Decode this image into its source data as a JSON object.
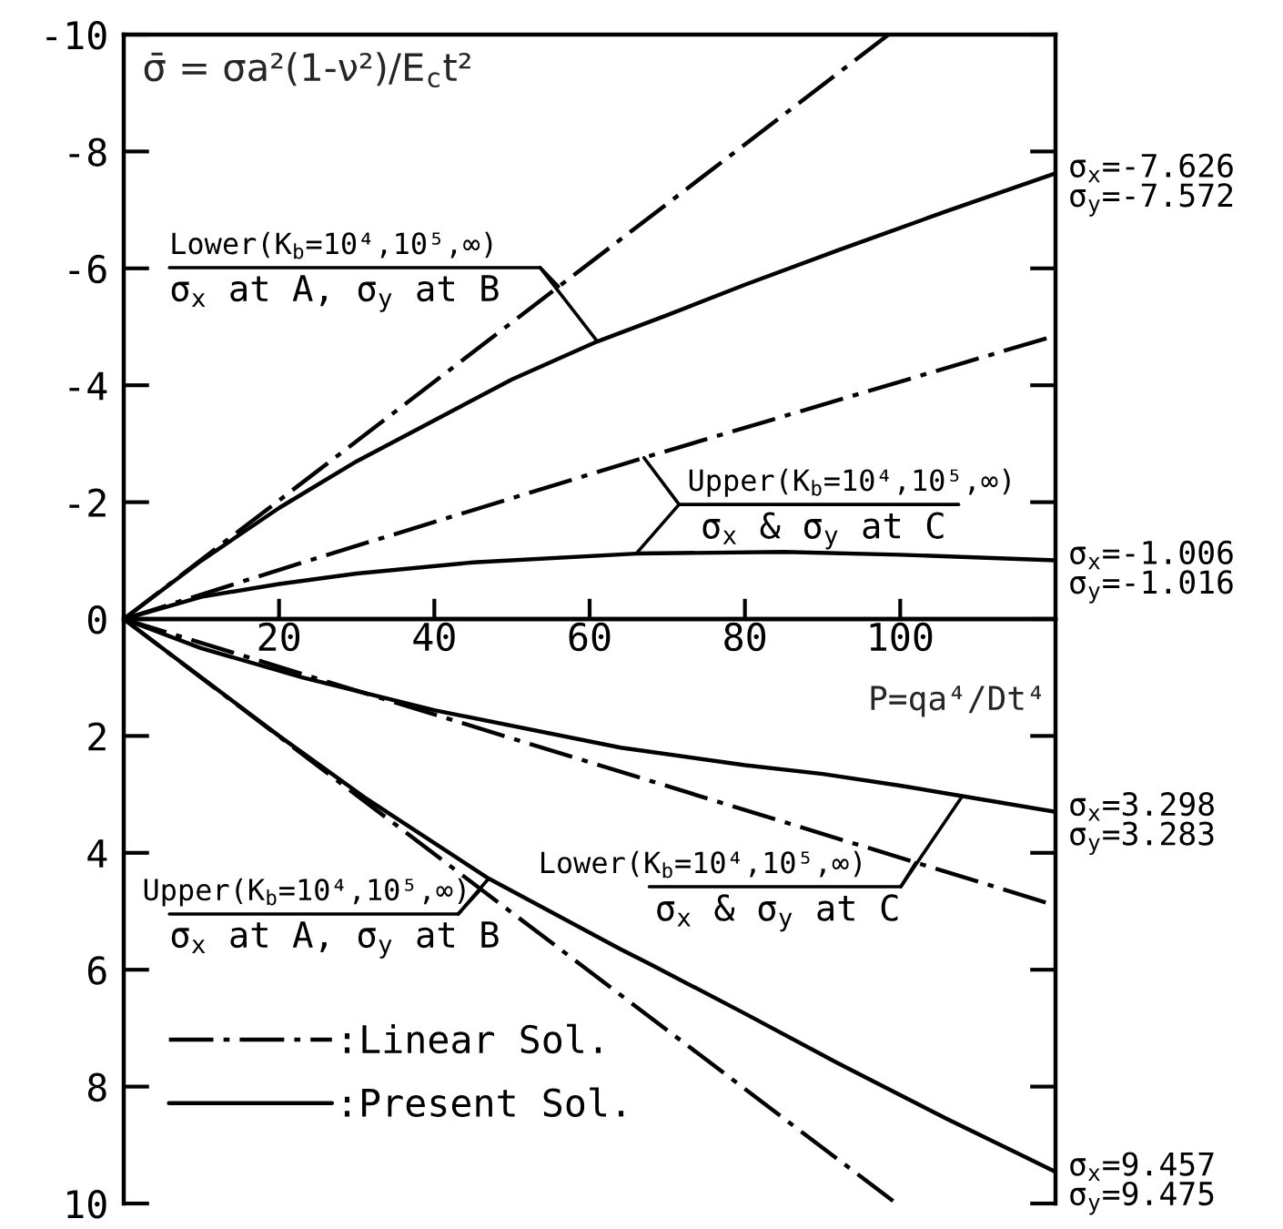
{
  "chart_data": {
    "type": "line",
    "ylabel": "σ̄ = σa²(1-ν²)/E$_{c}$t²",
    "xlabel": "P=qa⁴/Dt⁴",
    "xlim": [
      0,
      120
    ],
    "ylim": [
      10,
      -10
    ],
    "xticks": [
      20,
      40,
      60,
      80,
      100
    ],
    "yticks": [
      -10,
      -8,
      -6,
      -4,
      -2,
      0,
      2,
      4,
      6,
      8,
      10
    ],
    "legend": "bottom left",
    "series": [
      {
        "name": ":Linear Sol.",
        "color": "#000000",
        "line_style": "dashdot",
        "x": [
          0,
          98.5
        ],
        "values": [
          0,
          -10
        ]
      },
      {
        "name": ":Present Sol.",
        "color": "#000000",
        "line_style": "solid",
        "x": [
          0,
          10,
          20,
          30,
          40,
          50,
          61,
          70,
          80,
          92,
          106,
          120
        ],
        "values": [
          0,
          -1.0,
          -1.9,
          -2.7,
          -3.4,
          -4.1,
          -4.75,
          -5.2,
          -5.72,
          -6.31,
          -6.98,
          -7.626
        ]
      },
      {
        "color": "#000000",
        "line_style": "dashdot",
        "x": [
          0,
          25,
          68,
          120
        ],
        "values": [
          0,
          -1.05,
          -2.8,
          -4.85
        ]
      },
      {
        "color": "#000000",
        "line_style": "solid",
        "x": [
          0,
          10,
          20,
          30,
          45,
          66,
          85,
          100,
          120
        ],
        "values": [
          0,
          -0.38,
          -0.6,
          -0.78,
          -0.97,
          -1.12,
          -1.15,
          -1.1,
          -1.006
        ]
      },
      {
        "color": "#000000",
        "line_style": "solid",
        "x": [
          0,
          10,
          23,
          40,
          64,
          80,
          90,
          100,
          108,
          120
        ],
        "values": [
          0,
          0.5,
          1.0,
          1.56,
          2.2,
          2.5,
          2.65,
          2.85,
          3.03,
          3.298
        ]
      },
      {
        "color": "#000000",
        "line_style": "dashdot",
        "x": [
          0,
          120
        ],
        "values": [
          0,
          4.9
        ]
      },
      {
        "color": "#000000",
        "line_style": "solid",
        "x": [
          0,
          10,
          20,
          31,
          47,
          64,
          68,
          80,
          92,
          106,
          120
        ],
        "values": [
          0,
          1.0,
          2.0,
          3.05,
          4.44,
          5.65,
          5.92,
          6.75,
          7.6,
          8.55,
          9.457
        ]
      },
      {
        "color": "#000000",
        "line_style": "dashdot",
        "x": [
          0,
          99.5
        ],
        "values": [
          0,
          10
        ]
      }
    ],
    "annotations": [
      {
        "text": "σ$_{x}$=-7.626\nσ$_{y}$=-7.572",
        "x": 120,
        "y": -7.626
      },
      {
        "text": "σ$_{x}$=-1.006\nσ$_{y}$=-1.016",
        "x": 120,
        "y": -1.006
      },
      {
        "text": "σ$_{x}$=3.298\nσ$_{y}$=3.283",
        "x": 120,
        "y": 3.298
      },
      {
        "text": "σ$_{x}$=9.457\nσ$_{y}$=9.475",
        "x": 120,
        "y": 9.457
      },
      {
        "text": "Lower(K$_{b}$=10⁴,10⁵,∞)",
        "x": 56,
        "y": -5.69
      },
      {
        "text": "σ$_{x}$ at A, σ$_{y}$ at B",
        "x": 61,
        "y": -4.75
      },
      {
        "text": "Upper(K$_{b}$=10⁴,10⁵,∞)",
        "x": 67,
        "y": -2.76
      },
      {
        "text": "σ$_{x}$ & σ$_{y}$ at C",
        "x": 66,
        "y": -1.12
      },
      {
        "text": "Lower(K$_{b}$=10⁴,10⁵,∞)",
        "x": 102,
        "y": 4.17
      },
      {
        "text": "σ$_{x}$ & σ$_{y}$ at C",
        "x": 108,
        "y": 3.03
      },
      {
        "text": "Upper(K$_{b}$=10⁴,10⁵,∞)",
        "x": 46,
        "y": 4.62
      },
      {
        "text": "σ$_{x}$ at A, σ$_{y}$ at B",
        "x": 47,
        "y": 4.44
      }
    ]
  }
}
